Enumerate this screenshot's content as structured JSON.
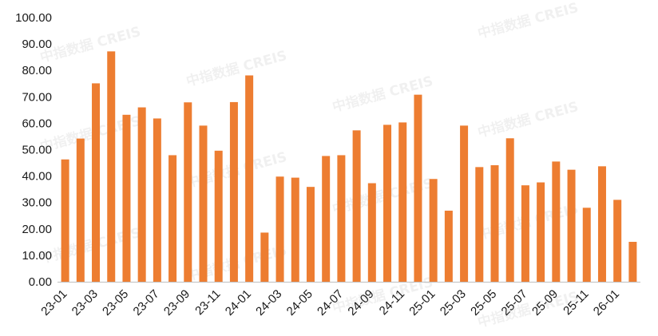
{
  "chart_data": {
    "type": "bar",
    "title": "",
    "xlabel": "",
    "ylabel": "",
    "ylim": [
      0,
      100
    ],
    "yticks": [
      "0.00",
      "10.00",
      "20.00",
      "30.00",
      "40.00",
      "50.00",
      "60.00",
      "70.00",
      "80.00",
      "90.00",
      "100.00"
    ],
    "categories": [
      "23-01",
      "23-02",
      "23-03",
      "23-04",
      "23-05",
      "23-06",
      "23-07",
      "23-08",
      "23-09",
      "23-10",
      "23-11",
      "23-12",
      "24-01",
      "24-02",
      "24-03",
      "24-04",
      "24-05",
      "24-06",
      "24-07",
      "24-08",
      "24-09",
      "24-10",
      "24-11",
      "24-12",
      "25-01",
      "25-02",
      "25-03",
      "25-04",
      "25-05",
      "25-06",
      "25-07",
      "25-08",
      "25-09",
      "25-10",
      "25-11",
      "25-12",
      "26-01",
      "26-02"
    ],
    "xtick_labels_shown": [
      "23-01",
      "23-03",
      "23-05",
      "23-07",
      "23-09",
      "23-11",
      "24-01",
      "24-03",
      "24-05",
      "24-07",
      "24-09",
      "24-11",
      "25-01",
      "25-03",
      "25-05",
      "25-07",
      "25-09",
      "25-11",
      "26-01"
    ],
    "values": [
      46.3,
      54.2,
      75.1,
      87.2,
      63.2,
      66.0,
      61.8,
      47.9,
      67.9,
      59.1,
      49.6,
      68.0,
      78.1,
      18.6,
      39.8,
      39.4,
      35.9,
      47.6,
      47.9,
      57.3,
      37.3,
      59.4,
      60.3,
      70.8,
      38.9,
      26.9,
      59.1,
      43.4,
      44.1,
      54.3,
      36.5,
      37.6,
      45.5,
      42.4,
      28.0,
      43.7,
      31.0,
      15.1
    ],
    "bar_color": "#ED7D31",
    "grid": false,
    "legend": "none"
  },
  "watermark": {
    "text": "中指数据 CREIS"
  }
}
